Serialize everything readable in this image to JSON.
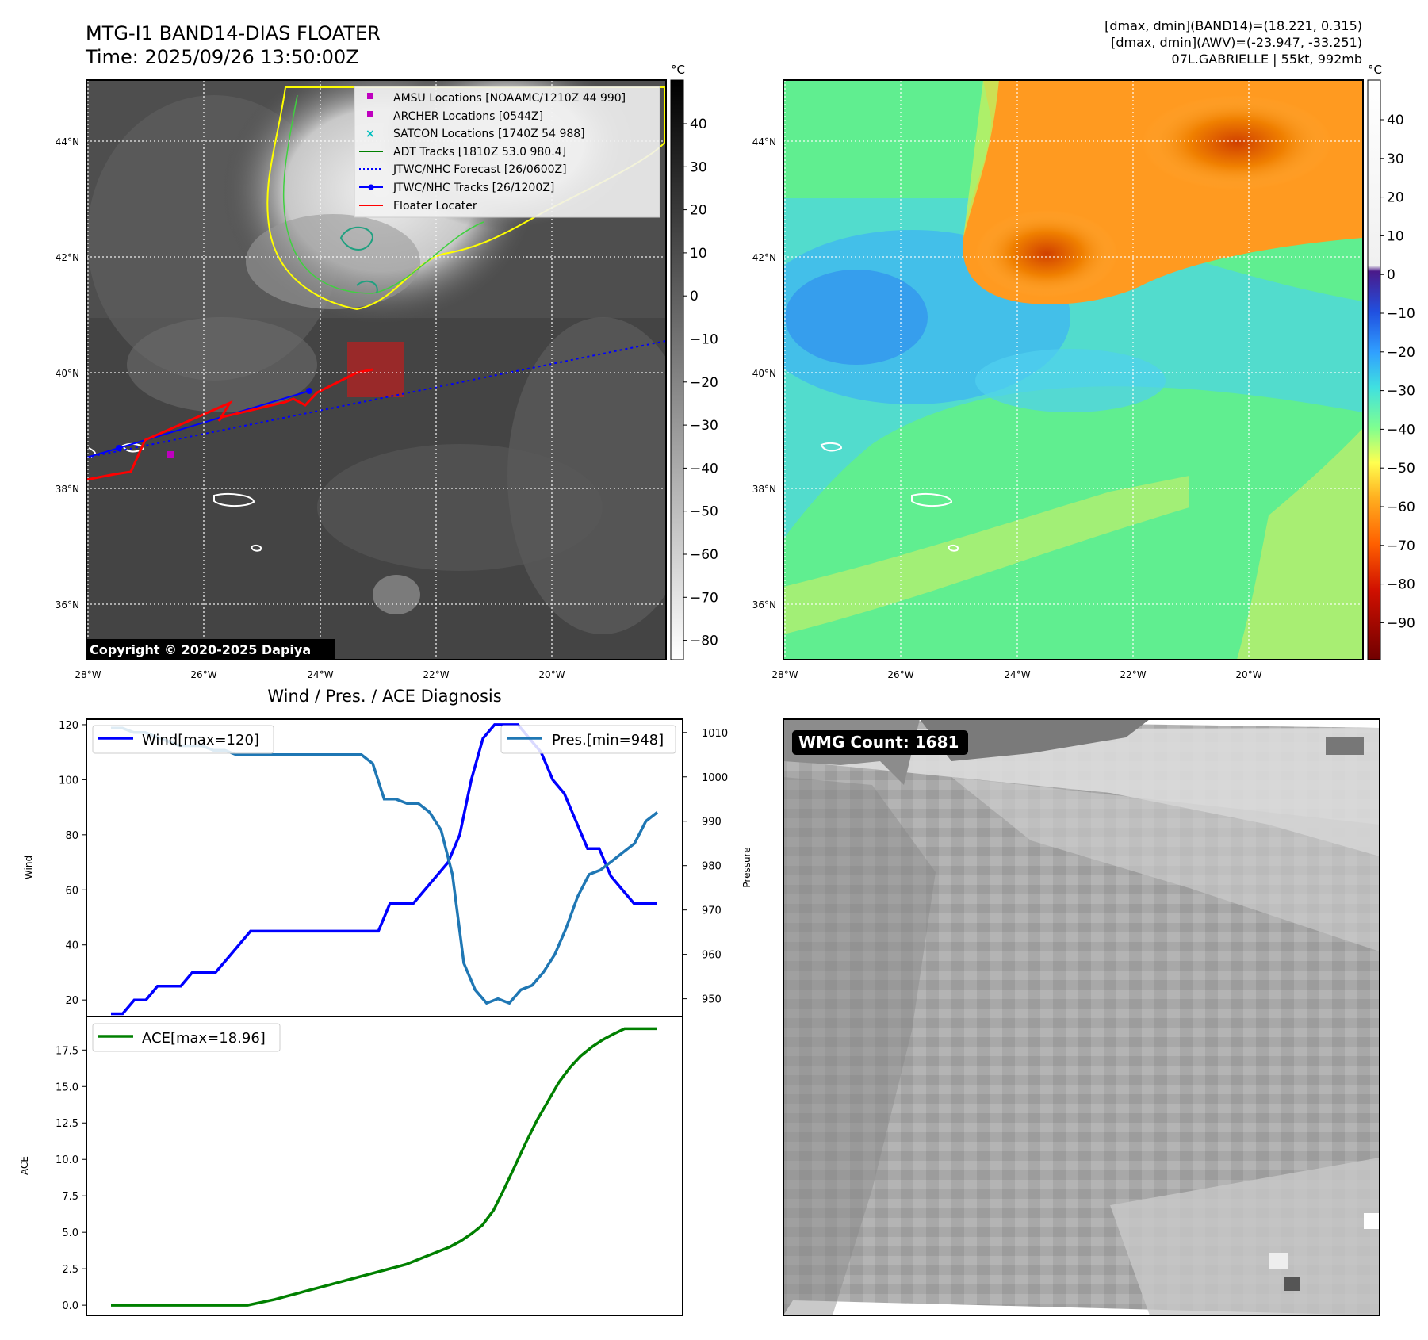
{
  "header": {
    "title_line1": "MTG-I1 BAND14-DIAS FLOATER",
    "title_line2": "Time: 2025/09/26 13:50:00Z",
    "info_line1": "[dmax, dmin](BAND14)=(18.221, 0.315)",
    "info_line2": "[dmax, dmin](AWV)=(-23.947, -33.251)",
    "info_line3": "07L.GABRIELLE | 55kt, 992mb"
  },
  "colors": {
    "wind": "#0000ff",
    "pressure": "#1f77b4",
    "ace": "#008000",
    "floater": "#ff0000",
    "forecast": "#0000ff",
    "amsu": "#bf00bf",
    "satcon": "#00bfbf",
    "adt": "#008000"
  },
  "maps": {
    "lon_ticks": [
      "28°W",
      "26°W",
      "24°W",
      "22°W",
      "20°W"
    ],
    "lat_ticks": [
      "44°N",
      "42°N",
      "40°N",
      "38°N",
      "36°N"
    ],
    "unit": "°C",
    "copyright": "Copyright © 2020-2025 Dapiya",
    "ir_colorbar_ticks": [
      "40",
      "30",
      "20",
      "10",
      "0",
      "−10",
      "−20",
      "−30",
      "−40",
      "−50",
      "−60",
      "−70",
      "−80"
    ],
    "wv_colorbar_ticks": [
      "40",
      "30",
      "20",
      "10",
      "0",
      "−10",
      "−20",
      "−30",
      "−40",
      "−50",
      "−60",
      "−70",
      "−80",
      "−90"
    ],
    "legend": [
      {
        "label": "AMSU Locations [NOAAMC/1210Z 44 990]",
        "marker": "square",
        "color": "#bf00bf"
      },
      {
        "label": "ARCHER Locations [0544Z]",
        "marker": "square",
        "color": "#bf00bf"
      },
      {
        "label": "SATCON Locations [1740Z 54 988]",
        "marker": "x",
        "color": "#00bfbf"
      },
      {
        "label": "ADT Tracks [1810Z 53.0 980.4]",
        "marker": "line",
        "color": "#008000"
      },
      {
        "label": "JTWC/NHC Forecast [26/0600Z]",
        "marker": "dotted",
        "color": "#0000ff"
      },
      {
        "label": "JTWC/NHC Tracks [26/1200Z]",
        "marker": "dotline",
        "color": "#0000ff"
      },
      {
        "label": "Floater Locater",
        "marker": "line",
        "color": "#ff0000"
      }
    ]
  },
  "chart_data": [
    {
      "type": "line",
      "title": "Wind / Pres. / ACE Diagnosis",
      "ylabel": "Wind",
      "ylabel2": "Pressure",
      "ylim": [
        14,
        122
      ],
      "ylim2": [
        946,
        1013
      ],
      "yticks": [
        20,
        40,
        60,
        80,
        100,
        120
      ],
      "yticks2": [
        950,
        960,
        970,
        980,
        990,
        1000,
        1010
      ],
      "series": [
        {
          "name": "Wind[max=120]",
          "axis": "left",
          "values": [
            15,
            15,
            20,
            20,
            25,
            25,
            25,
            30,
            30,
            30,
            35,
            40,
            45,
            45,
            45,
            45,
            45,
            45,
            45,
            45,
            45,
            45,
            45,
            45,
            55,
            55,
            55,
            60,
            65,
            70,
            80,
            100,
            115,
            120,
            120,
            120,
            115,
            110,
            100,
            95,
            85,
            75,
            75,
            65,
            60,
            55,
            55,
            55
          ]
        },
        {
          "name": "Pres.[min=948]",
          "axis": "right",
          "values": [
            1011,
            1011,
            1010,
            1010,
            1009,
            1008,
            1007,
            1007,
            1007,
            1006,
            1006,
            1005,
            1005,
            1005,
            1005,
            1005,
            1005,
            1005,
            1005,
            1005,
            1005,
            1005,
            1005,
            1003,
            995,
            995,
            994,
            994,
            992,
            988,
            978,
            958,
            952,
            949,
            950,
            949,
            952,
            953,
            956,
            960,
            966,
            973,
            978,
            979,
            981,
            983,
            985,
            990,
            992
          ]
        }
      ]
    },
    {
      "type": "line",
      "ylabel": "ACE",
      "ylim": [
        -0.7,
        19.8
      ],
      "yticks": [
        "0.0",
        "2.5",
        "5.0",
        "7.5",
        "10.0",
        "12.5",
        "15.0",
        "17.5"
      ],
      "series": [
        {
          "name": "ACE[max=18.96]",
          "x": [
            0,
            5,
            10,
            15,
            20,
            25,
            30,
            32,
            34,
            36,
            38,
            40,
            42,
            44,
            46,
            48,
            50,
            52,
            54,
            56,
            58,
            60,
            62,
            64,
            66,
            68,
            70,
            72,
            74,
            76,
            78,
            80,
            82,
            84,
            86,
            88,
            90,
            92,
            94,
            96,
            98,
            100
          ],
          "values": [
            0,
            0,
            0,
            0,
            0,
            0,
            0.4,
            0.6,
            0.8,
            1.0,
            1.2,
            1.4,
            1.6,
            1.8,
            2.0,
            2.2,
            2.4,
            2.6,
            2.8,
            3.1,
            3.4,
            3.7,
            4.0,
            4.4,
            4.9,
            5.5,
            6.5,
            8.0,
            9.6,
            11.2,
            12.7,
            14.0,
            15.3,
            16.3,
            17.1,
            17.7,
            18.2,
            18.6,
            18.96,
            18.96,
            18.96,
            18.96
          ]
        }
      ]
    }
  ],
  "wmg": {
    "label": "WMG Count: 1681"
  }
}
